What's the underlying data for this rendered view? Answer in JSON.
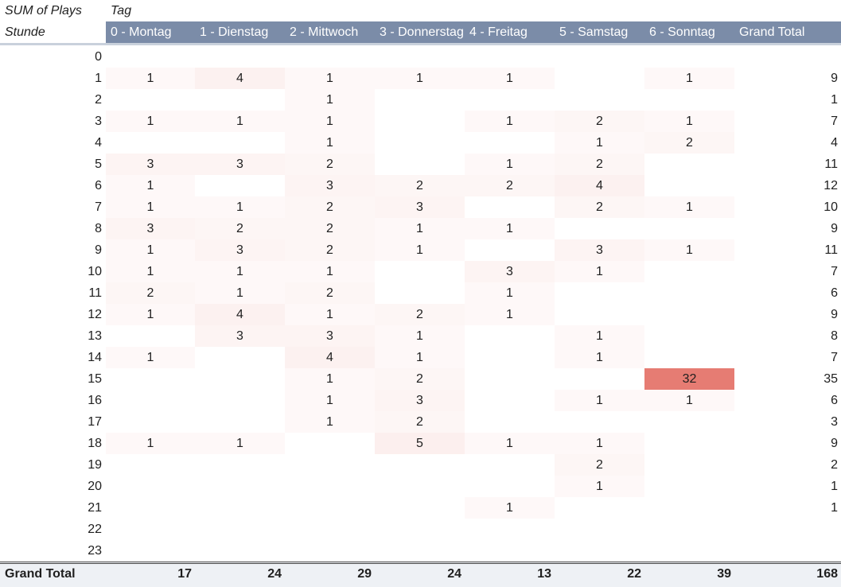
{
  "corner": {
    "sum_label": "SUM of Plays",
    "row_field": "Stunde",
    "col_field": "Tag"
  },
  "columns": [
    "0 - Montag",
    "1 - Dienstag",
    "2 - Mittwoch",
    "3 - Donnerstag",
    "4 - Freitag",
    "5 - Samstag",
    "6 - Sonntag",
    "Grand Total"
  ],
  "heat_color": "#e67c73",
  "max_value": 32,
  "rows": [
    {
      "hour": "0",
      "values": [
        "",
        "",
        "",
        "",
        "",
        "",
        ""
      ],
      "total": ""
    },
    {
      "hour": "1",
      "values": [
        "1",
        "4",
        "1",
        "1",
        "1",
        "",
        "1"
      ],
      "total": "9"
    },
    {
      "hour": "2",
      "values": [
        "",
        "",
        "1",
        "",
        "",
        "",
        ""
      ],
      "total": "1"
    },
    {
      "hour": "3",
      "values": [
        "1",
        "1",
        "1",
        "",
        "1",
        "2",
        "1"
      ],
      "total": "7"
    },
    {
      "hour": "4",
      "values": [
        "",
        "",
        "1",
        "",
        "",
        "1",
        "2"
      ],
      "total": "4"
    },
    {
      "hour": "5",
      "values": [
        "3",
        "3",
        "2",
        "",
        "1",
        "2",
        ""
      ],
      "total": "11"
    },
    {
      "hour": "6",
      "values": [
        "1",
        "",
        "3",
        "2",
        "2",
        "4",
        ""
      ],
      "total": "12"
    },
    {
      "hour": "7",
      "values": [
        "1",
        "1",
        "2",
        "3",
        "",
        "2",
        "1"
      ],
      "total": "10"
    },
    {
      "hour": "8",
      "values": [
        "3",
        "2",
        "2",
        "1",
        "1",
        "",
        ""
      ],
      "total": "9"
    },
    {
      "hour": "9",
      "values": [
        "1",
        "3",
        "2",
        "1",
        "",
        "3",
        "1"
      ],
      "total": "11"
    },
    {
      "hour": "10",
      "values": [
        "1",
        "1",
        "1",
        "",
        "3",
        "1",
        ""
      ],
      "total": "7"
    },
    {
      "hour": "11",
      "values": [
        "2",
        "1",
        "2",
        "",
        "1",
        "",
        ""
      ],
      "total": "6"
    },
    {
      "hour": "12",
      "values": [
        "1",
        "4",
        "1",
        "2",
        "1",
        "",
        ""
      ],
      "total": "9"
    },
    {
      "hour": "13",
      "values": [
        "",
        "3",
        "3",
        "1",
        "",
        "1",
        ""
      ],
      "total": "8"
    },
    {
      "hour": "14",
      "values": [
        "1",
        "",
        "4",
        "1",
        "",
        "1",
        ""
      ],
      "total": "7"
    },
    {
      "hour": "15",
      "values": [
        "",
        "",
        "1",
        "2",
        "",
        "",
        "32"
      ],
      "total": "35"
    },
    {
      "hour": "16",
      "values": [
        "",
        "",
        "1",
        "3",
        "",
        "1",
        "1"
      ],
      "total": "6"
    },
    {
      "hour": "17",
      "values": [
        "",
        "",
        "1",
        "2",
        "",
        "",
        ""
      ],
      "total": "3"
    },
    {
      "hour": "18",
      "values": [
        "1",
        "1",
        "",
        "5",
        "1",
        "1",
        ""
      ],
      "total": "9"
    },
    {
      "hour": "19",
      "values": [
        "",
        "",
        "",
        "",
        "",
        "2",
        ""
      ],
      "total": "2"
    },
    {
      "hour": "20",
      "values": [
        "",
        "",
        "",
        "",
        "",
        "1",
        ""
      ],
      "total": "1"
    },
    {
      "hour": "21",
      "values": [
        "",
        "",
        "",
        "",
        "1",
        "",
        ""
      ],
      "total": "1"
    },
    {
      "hour": "22",
      "values": [
        "",
        "",
        "",
        "",
        "",
        "",
        ""
      ],
      "total": ""
    },
    {
      "hour": "23",
      "values": [
        "",
        "",
        "",
        "",
        "",
        "",
        ""
      ],
      "total": ""
    }
  ],
  "grand_total": {
    "label": "Grand Total",
    "values": [
      "17",
      "24",
      "29",
      "24",
      "13",
      "22",
      "39"
    ],
    "total": "168"
  }
}
